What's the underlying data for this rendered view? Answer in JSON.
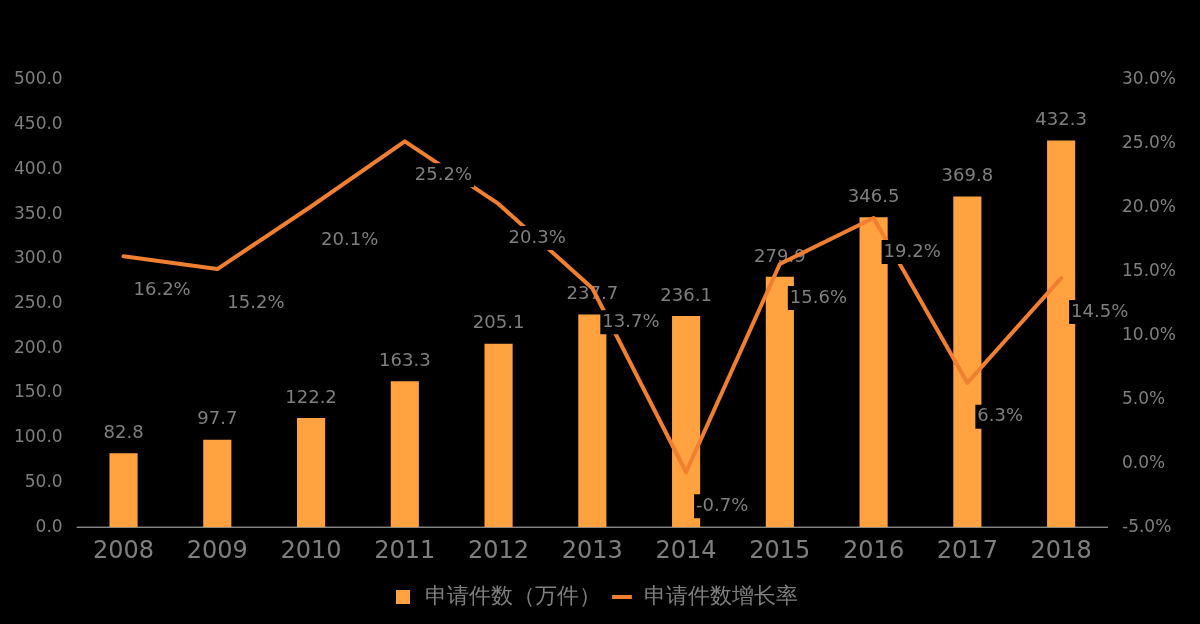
{
  "chart_data": {
    "type": "line",
    "categories": [
      "2008",
      "2009",
      "2010",
      "2011",
      "2012",
      "2013",
      "2014",
      "2015",
      "2016",
      "2017",
      "2018"
    ],
    "series": [
      {
        "name": "申请件数（万件）",
        "type": "bar",
        "color": "#ffa23f",
        "values": [
          82.8,
          97.7,
          122.2,
          163.3,
          205.1,
          237.7,
          236.1,
          279.9,
          346.5,
          369.8,
          432.3
        ],
        "value_labels": [
          "82.8",
          "97.7",
          "122.2",
          "163.3",
          "205.1",
          "237.7",
          "236.1",
          "279.9",
          "346.5",
          "369.8",
          "432.3"
        ]
      },
      {
        "name": "申请件数增长率",
        "axis": "y2",
        "color": "#f07f30",
        "values": [
          16.2,
          15.2,
          20.1,
          25.2,
          20.3,
          13.7,
          -0.7,
          15.6,
          19.2,
          6.3,
          14.5
        ],
        "value_labels": [
          "16.2%",
          "15.2%",
          "20.1%",
          "25.2%",
          "20.3%",
          "13.7%",
          "-0.7%",
          "15.6%",
          "19.2%",
          "6.3%",
          "14.5%"
        ]
      }
    ],
    "ylim": [
      0,
      500
    ],
    "yticks": [
      {
        "value": 0,
        "label": "0.0"
      },
      {
        "value": 50,
        "label": "50.0"
      },
      {
        "value": 100,
        "label": "100.0"
      },
      {
        "value": 150,
        "label": "150.0"
      },
      {
        "value": 200,
        "label": "200.0"
      },
      {
        "value": 250,
        "label": "250.0"
      },
      {
        "value": 300,
        "label": "300.0"
      },
      {
        "value": 350,
        "label": "350.0"
      },
      {
        "value": 400,
        "label": "400.0"
      },
      {
        "value": 450,
        "label": "450.0"
      },
      {
        "value": 500,
        "label": "500.0"
      }
    ],
    "y2lim": [
      -5,
      30
    ],
    "y2ticks": [
      {
        "value": -5,
        "label": "-5.0%"
      },
      {
        "value": 0,
        "label": "0.0%"
      },
      {
        "value": 5,
        "label": "5.0%"
      },
      {
        "value": 10,
        "label": "10.0%"
      },
      {
        "value": 15,
        "label": "15.0%"
      },
      {
        "value": 20,
        "label": "20.0%"
      },
      {
        "value": 25,
        "label": "25.0%"
      },
      {
        "value": 30,
        "label": "30.0%"
      }
    ],
    "grid": false,
    "legend": "bottom",
    "marker": "none",
    "line_style": "solid"
  }
}
